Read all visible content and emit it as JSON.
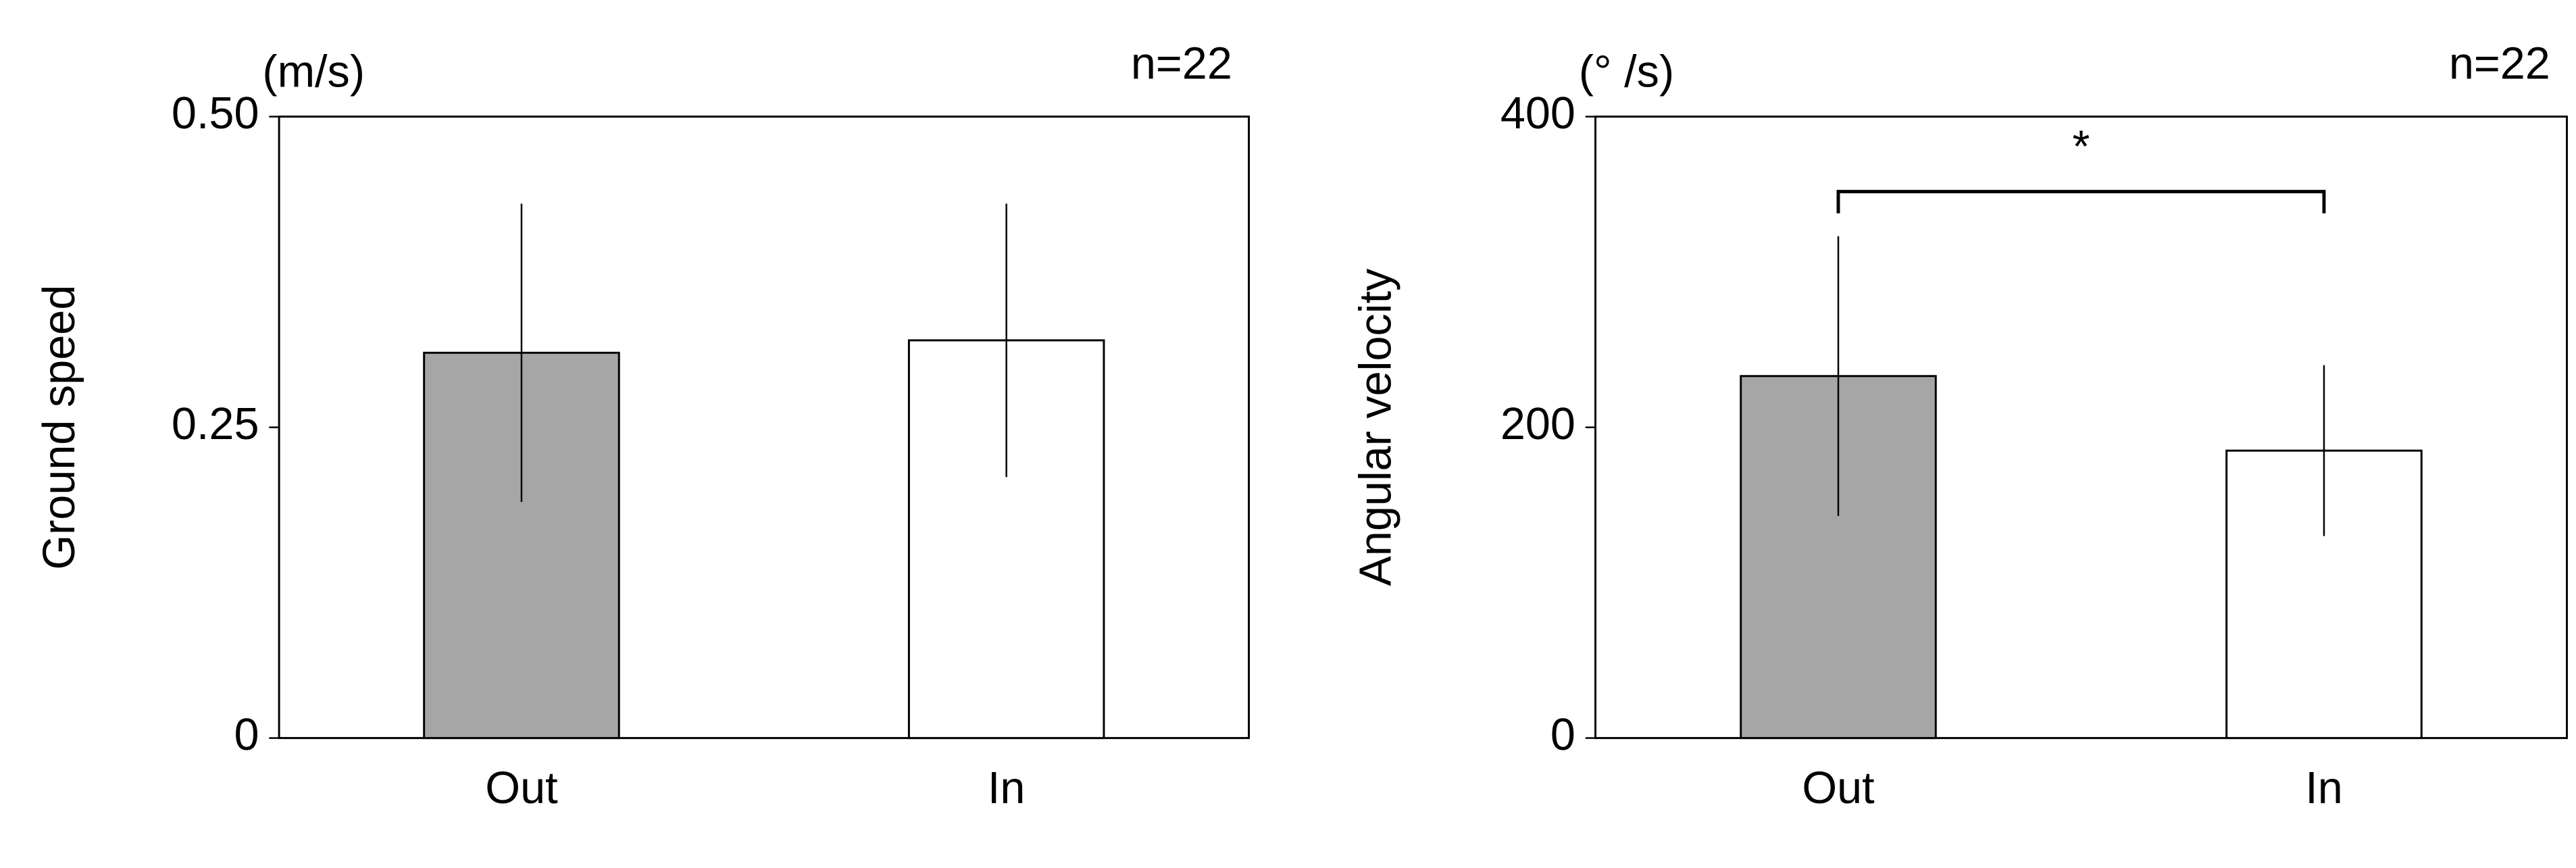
{
  "chart_data": [
    {
      "type": "bar",
      "ylabel": "Ground speed",
      "unit": "(m/s)",
      "note": "n=22",
      "categories": [
        "Out",
        "In"
      ],
      "values": [
        0.31,
        0.32
      ],
      "errors": [
        0.12,
        0.11
      ],
      "colors": [
        "#a6a6a6",
        "#ffffff"
      ],
      "ylim": [
        0,
        0.5
      ],
      "yticks": [
        0,
        0.25,
        {
          "value": 0.5,
          "label": "0.50"
        }
      ]
    },
    {
      "type": "bar",
      "ylabel": "Angular velocity",
      "unit": "(° /s)",
      "note": "n=22",
      "categories": [
        "Out",
        "In"
      ],
      "values": [
        233,
        185
      ],
      "errors": [
        90,
        55
      ],
      "colors": [
        "#a6a6a6",
        "#ffffff"
      ],
      "ylim": [
        0,
        400
      ],
      "yticks": [
        0,
        200,
        400
      ],
      "annotation": "*"
    }
  ]
}
